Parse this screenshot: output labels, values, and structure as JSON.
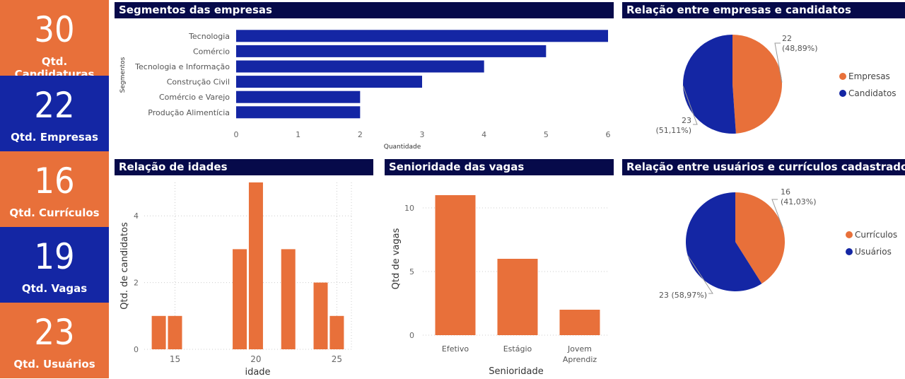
{
  "colors": {
    "orange": "#e8703a",
    "navy": "#1426a4",
    "header": "#060a4a"
  },
  "kpis": [
    {
      "value": "30",
      "label": "Qtd. Candidaturas",
      "color": "#e8703a"
    },
    {
      "value": "22",
      "label": "Qtd. Empresas",
      "color": "#1426a4"
    },
    {
      "value": "16",
      "label": "Qtd. Currículos",
      "color": "#e8703a"
    },
    {
      "value": "19",
      "label": "Qtd. Vagas",
      "color": "#1426a4"
    },
    {
      "value": "23",
      "label": "Qtd. Usuários",
      "color": "#e8703a"
    }
  ],
  "panels": {
    "segmentos": "Segmentos das empresas",
    "empresas_candidatos": "Relação entre empresas e candidatos",
    "idades": "Relação de idades",
    "senioridade": "Senioridade das vagas",
    "usuarios_curriculos": "Relação entre usuários e currículos cadastrados"
  },
  "chart_data": [
    {
      "id": "segmentos",
      "type": "bar",
      "orientation": "horizontal",
      "categories": [
        "Tecnologia",
        "Comércio",
        "Tecnologia e Informação",
        "Construção Civil",
        "Comércio e Varejo",
        "Produção Alimentícia"
      ],
      "values": [
        6,
        5,
        4,
        3,
        2,
        2
      ],
      "xlabel": "Quantidade",
      "ylabel": "Segmentos",
      "xlim": [
        0,
        6
      ],
      "xticks": [
        "0",
        "1",
        "2",
        "3",
        "4",
        "5",
        "6"
      ],
      "color": "#1426a4",
      "grid": false
    },
    {
      "id": "empresas_candidatos",
      "type": "pie",
      "slices": [
        {
          "name": "Empresas",
          "value": 22,
          "label_value": "22",
          "label_pct": "(48,89%)",
          "color": "#e8703a"
        },
        {
          "name": "Candidatos",
          "value": 23,
          "label_value": "23",
          "label_pct": "(51,11%)",
          "color": "#1426a4"
        }
      ],
      "legend": "right"
    },
    {
      "id": "idades",
      "type": "bar",
      "orientation": "vertical",
      "x": [
        14,
        15,
        19,
        20,
        22,
        24,
        25
      ],
      "values": [
        1,
        1,
        3,
        5,
        3,
        2,
        1
      ],
      "xlabel": "idade",
      "ylabel": "Qtd. de candidatos",
      "xlim": [
        13.1,
        25.9
      ],
      "ylim": [
        0,
        5
      ],
      "xticks": [
        15,
        20,
        25
      ],
      "yticks": [
        0,
        2,
        4
      ],
      "color": "#e8703a",
      "grid": true
    },
    {
      "id": "senioridade",
      "type": "bar",
      "orientation": "vertical",
      "categories": [
        "Efetivo",
        "Estágio",
        "Jovem Aprendiz"
      ],
      "values": [
        11,
        6,
        2
      ],
      "xlabel": "Senioridade",
      "ylabel": "Qtd de vagas",
      "ylim": [
        0,
        11
      ],
      "yticks": [
        0,
        5,
        10
      ],
      "color": "#e8703a",
      "grid": true
    },
    {
      "id": "usuarios_curriculos",
      "type": "pie",
      "slices": [
        {
          "name": "Currículos",
          "value": 16,
          "label_value": "16",
          "label_pct": "(41,03%)",
          "color": "#e8703a"
        },
        {
          "name": "Usuários",
          "value": 23,
          "label_value": "23 (58,97%)",
          "label_pct": "",
          "color": "#1426a4"
        }
      ],
      "legend": "right"
    }
  ]
}
